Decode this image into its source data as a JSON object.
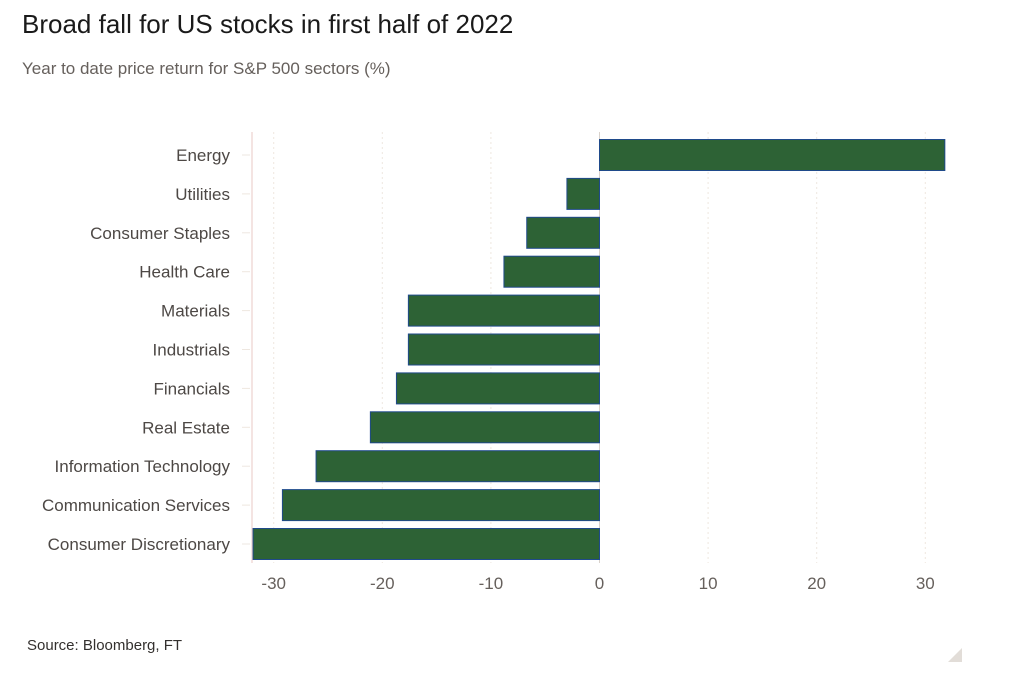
{
  "header": {
    "title": "Broad fall for US stocks in first half of 2022",
    "subtitle": "Year to date price return for S&P 500 sectors (%)"
  },
  "footer": {
    "source": "Source: Bloomberg, FT"
  },
  "colors": {
    "bar": "#2d6235",
    "bar_outline": "#1f4a8a",
    "grid": "#eee7e0",
    "axis_line": "#e8c9c4",
    "zero_line": "#d9d2cc"
  },
  "chart_data": {
    "type": "bar",
    "orientation": "horizontal",
    "title": "Broad fall for US stocks in first half of 2022",
    "subtitle": "Year to date price return for S&P 500 sectors (%)",
    "xlabel": "",
    "ylabel": "",
    "categories": [
      "Energy",
      "Utilities",
      "Consumer Staples",
      "Health Care",
      "Materials",
      "Industrials",
      "Financials",
      "Real Estate",
      "Information Technology",
      "Communication Services",
      "Consumer Discretionary"
    ],
    "values": [
      31.8,
      -3.0,
      -6.7,
      -8.8,
      -17.6,
      -17.6,
      -18.7,
      -21.1,
      -26.1,
      -29.2,
      -31.9
    ],
    "xlim": [
      -32,
      32
    ],
    "xticks": [
      -30,
      -20,
      -10,
      0,
      10,
      20,
      30
    ],
    "xtick_labels": [
      "-30",
      "-20",
      "-10",
      "0",
      "10",
      "20",
      "30"
    ],
    "grid": true,
    "legend": "none"
  }
}
